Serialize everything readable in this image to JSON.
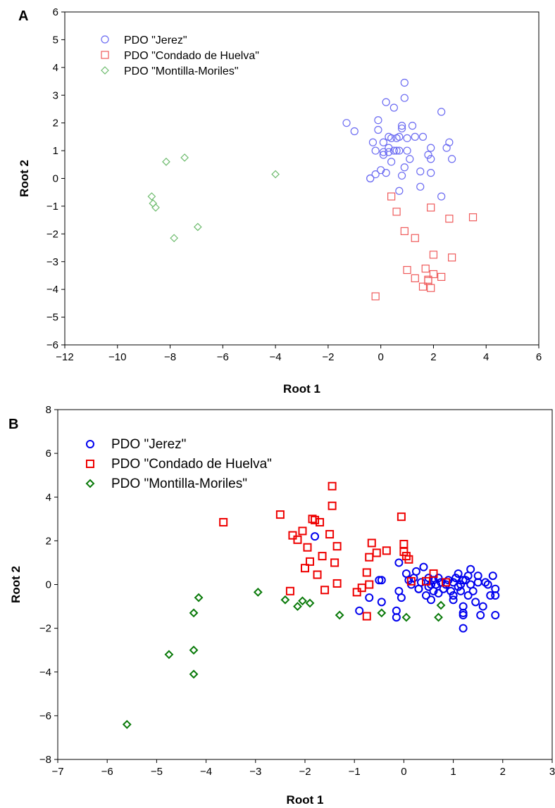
{
  "chart_data": [
    {
      "panel": "A",
      "type": "scatter",
      "xlabel": "Root 1",
      "ylabel": "Root 2",
      "xlim": [
        -12,
        6
      ],
      "ylim": [
        -6,
        6
      ],
      "xticks": [
        -12,
        -10,
        -8,
        -6,
        -4,
        -2,
        0,
        2,
        4,
        6
      ],
      "yticks": [
        -6,
        -5,
        -4,
        -3,
        -2,
        -1,
        0,
        1,
        2,
        3,
        4,
        5,
        6
      ],
      "grid": false,
      "legend_position": "top-left",
      "series": [
        {
          "name": "PDO \"Jerez\"",
          "marker": "circle",
          "color": "#6b6bf2",
          "x": [
            -1.3,
            -1.0,
            -0.4,
            -0.3,
            -0.2,
            -0.2,
            -0.1,
            -0.1,
            0.0,
            0.1,
            0.1,
            0.2,
            0.2,
            0.3,
            0.3,
            0.4,
            0.4,
            0.5,
            0.5,
            0.6,
            0.6,
            0.7,
            0.7,
            0.8,
            0.8,
            0.8,
            0.9,
            0.9,
            0.9,
            1.0,
            1.0,
            1.1,
            1.2,
            1.3,
            1.5,
            1.5,
            1.6,
            1.8,
            1.9,
            1.9,
            2.3,
            2.3,
            2.5,
            2.6,
            2.7,
            0.7,
            1.9,
            -0.4,
            0.1,
            0.3
          ],
          "y": [
            2.0,
            1.7,
            0.0,
            1.3,
            0.15,
            1.0,
            2.1,
            1.75,
            0.3,
            0.95,
            1.3,
            0.2,
            2.75,
            1.5,
            0.95,
            0.6,
            1.45,
            2.55,
            1.0,
            1.45,
            1.0,
            -0.45,
            1.5,
            0.1,
            1.8,
            1.9,
            3.45,
            2.9,
            0.4,
            1.0,
            1.45,
            0.7,
            1.9,
            1.5,
            0.25,
            -0.3,
            1.5,
            0.85,
            1.1,
            0.2,
            -0.65,
            2.4,
            1.1,
            1.3,
            0.7,
            1.0,
            0.7,
            0.0,
            0.85,
            1.1
          ]
        },
        {
          "name": "PDO \"Condado de Huelva\"",
          "marker": "square",
          "color": "#ef5a5a",
          "x": [
            -0.2,
            0.4,
            0.6,
            0.9,
            1.0,
            1.3,
            1.3,
            1.6,
            1.7,
            1.8,
            1.8,
            1.9,
            1.9,
            2.0,
            2.0,
            2.3,
            2.6,
            2.7,
            3.5
          ],
          "y": [
            -4.25,
            -0.65,
            -1.2,
            -1.9,
            -3.3,
            -2.15,
            -3.6,
            -3.9,
            -3.25,
            -3.65,
            -3.7,
            -3.95,
            -1.05,
            -2.75,
            -3.45,
            -3.55,
            -1.45,
            -2.85,
            -1.4
          ]
        },
        {
          "name": "PDO \"Montilla-Moriles\"",
          "marker": "diamond",
          "color": "#6dbb6d",
          "x": [
            -8.7,
            -8.65,
            -8.55,
            -8.15,
            -7.85,
            -7.45,
            -6.95,
            -4.0
          ],
          "y": [
            -0.65,
            -0.9,
            -1.05,
            0.6,
            -2.15,
            0.75,
            -1.75,
            0.15
          ]
        }
      ]
    },
    {
      "panel": "B",
      "type": "scatter",
      "xlabel": "Root 1",
      "ylabel": "Root 2",
      "xlim": [
        -7,
        3
      ],
      "ylim": [
        -8,
        8
      ],
      "xticks": [
        -7,
        -6,
        -5,
        -4,
        -3,
        -2,
        -1,
        0,
        1,
        2,
        3
      ],
      "yticks": [
        -8,
        -6,
        -4,
        -2,
        0,
        2,
        4,
        6,
        8
      ],
      "grid": false,
      "legend_position": "top-left",
      "series": [
        {
          "name": "PDO \"Jerez\"",
          "marker": "circle",
          "color": "#0000ee",
          "x": [
            -1.8,
            -0.9,
            -0.7,
            -0.5,
            -0.45,
            -0.45,
            -0.15,
            -0.15,
            -0.1,
            -0.1,
            -0.05,
            0.05,
            0.1,
            0.15,
            0.2,
            0.25,
            0.3,
            0.35,
            0.4,
            0.45,
            0.5,
            0.5,
            0.55,
            0.6,
            0.6,
            0.65,
            0.7,
            0.7,
            0.75,
            0.8,
            0.85,
            0.9,
            0.95,
            1.0,
            1.0,
            1.05,
            1.1,
            1.1,
            1.15,
            1.15,
            1.2,
            1.2,
            1.2,
            1.25,
            1.3,
            1.3,
            1.35,
            1.35,
            1.4,
            1.45,
            1.5,
            1.5,
            1.55,
            1.6,
            1.65,
            1.7,
            1.75,
            1.8,
            1.85,
            1.85,
            1.85,
            1.2,
            1.2,
            1.0,
            0.55,
            0.3
          ],
          "y": [
            2.2,
            -1.2,
            -0.6,
            0.2,
            0.2,
            -0.8,
            -1.2,
            -1.5,
            -0.3,
            1.0,
            -0.6,
            0.5,
            0.2,
            0.0,
            0.3,
            0.6,
            -0.2,
            0.1,
            0.8,
            -0.5,
            0.3,
            -0.1,
            -0.7,
            -0.3,
            0.2,
            0.0,
            -0.4,
            0.3,
            0.1,
            -0.2,
            0.0,
            0.2,
            -0.3,
            0.1,
            -0.5,
            0.3,
            -0.1,
            0.5,
            -0.3,
            0.0,
            -1.0,
            -1.4,
            -2.0,
            0.2,
            -0.5,
            0.4,
            0.0,
            0.7,
            -0.3,
            -0.8,
            0.1,
            0.4,
            -1.4,
            -1.0,
            0.1,
            0.0,
            -0.5,
            0.4,
            -0.5,
            -1.4,
            -0.2,
            -1.3,
            0.2,
            -0.7,
            0.0,
            -0.2
          ]
        },
        {
          "name": "PDO \"Condado de Huelva\"",
          "marker": "square",
          "color": "#ee0000",
          "x": [
            -3.65,
            -2.5,
            -2.3,
            -2.25,
            -2.15,
            -2.05,
            -2.0,
            -1.95,
            -1.9,
            -1.85,
            -1.8,
            -1.75,
            -1.7,
            -1.65,
            -1.6,
            -1.5,
            -1.45,
            -1.45,
            -1.4,
            -1.35,
            -1.35,
            -0.95,
            -0.85,
            -0.75,
            -0.75,
            -0.7,
            -0.7,
            -0.65,
            -0.55,
            -0.35,
            -0.05,
            0.0,
            0.0,
            0.05,
            0.1,
            0.15,
            0.45,
            0.6,
            0.85
          ],
          "y": [
            2.85,
            3.2,
            -0.3,
            2.25,
            2.05,
            2.45,
            0.75,
            1.7,
            1.05,
            3.0,
            2.95,
            0.45,
            2.85,
            1.3,
            -0.25,
            2.3,
            4.5,
            3.6,
            1.0,
            1.75,
            0.05,
            -0.35,
            -0.15,
            -1.45,
            0.55,
            1.25,
            0.0,
            1.9,
            1.45,
            1.55,
            3.1,
            1.85,
            1.5,
            1.3,
            1.15,
            0.15,
            0.15,
            0.5,
            0.1
          ]
        },
        {
          "name": "PDO \"Montilla-Moriles\"",
          "marker": "diamond",
          "color": "#0a7a0a",
          "x": [
            -5.6,
            -4.75,
            -4.25,
            -4.25,
            -4.25,
            -4.15,
            -2.95,
            -2.4,
            -2.15,
            -2.05,
            -1.9,
            -1.3,
            -0.45,
            0.05,
            0.7,
            0.75
          ],
          "y": [
            -6.4,
            -3.2,
            -4.1,
            -3.0,
            -1.3,
            -0.6,
            -0.35,
            -0.7,
            -1.0,
            -0.75,
            -0.85,
            -1.4,
            -1.3,
            -1.5,
            -1.5,
            -0.95
          ]
        }
      ]
    }
  ]
}
